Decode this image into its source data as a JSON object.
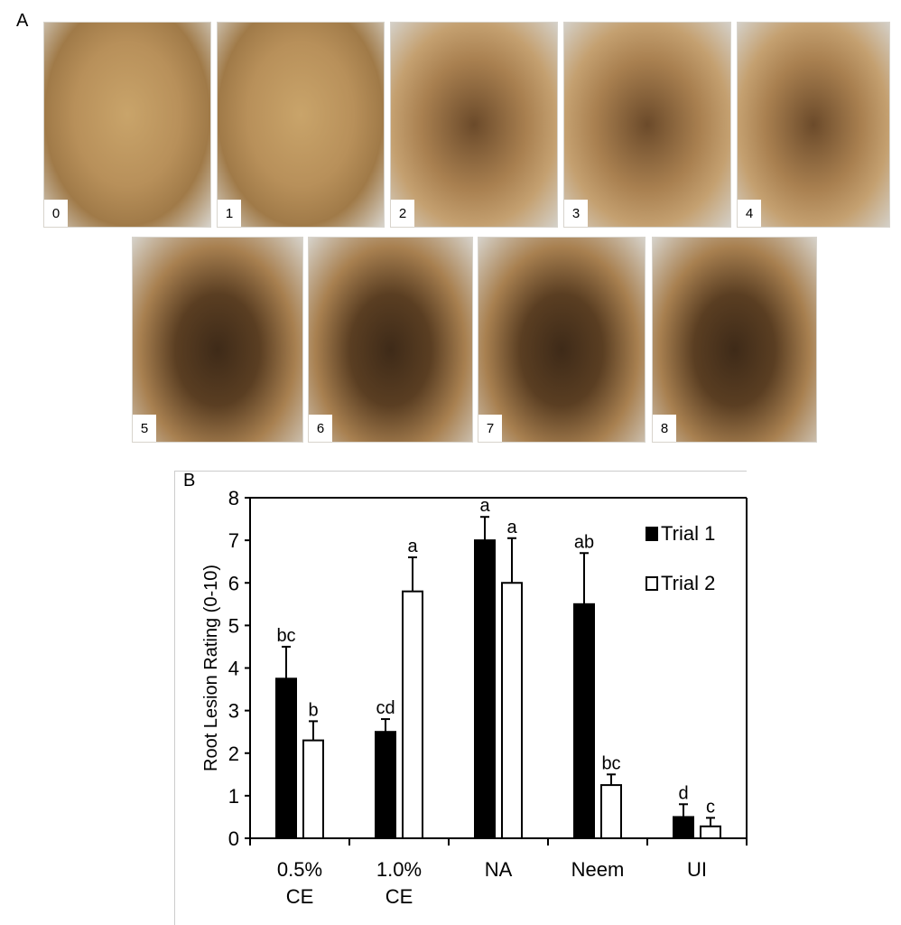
{
  "panel_a": {
    "label": "A",
    "photos": [
      {
        "num": "0",
        "tone": "light"
      },
      {
        "num": "1",
        "tone": "light"
      },
      {
        "num": "2",
        "tone": "mixed"
      },
      {
        "num": "3",
        "tone": "mixed"
      },
      {
        "num": "4",
        "tone": "mixed"
      },
      {
        "num": "5",
        "tone": "dark"
      },
      {
        "num": "6",
        "tone": "dark"
      },
      {
        "num": "7",
        "tone": "dark"
      },
      {
        "num": "8",
        "tone": "dark"
      }
    ]
  },
  "panel_b": {
    "label": "B"
  },
  "chart_data": {
    "type": "bar",
    "title": "",
    "xlabel": "",
    "ylabel": "Root Lesion Rating (0-10)",
    "ylim": [
      0,
      8
    ],
    "yticks": [
      0,
      1,
      2,
      3,
      4,
      5,
      6,
      7,
      8
    ],
    "categories": [
      "0.5% CE",
      "1.0% CE",
      "NA",
      "Neem",
      "UI"
    ],
    "category_lines": [
      [
        "0.5%",
        "CE"
      ],
      [
        "1.0%",
        "CE"
      ],
      [
        "NA"
      ],
      [
        "Neem"
      ],
      [
        "UI"
      ]
    ],
    "series": [
      {
        "name": "Trial 1",
        "fill": "#000000",
        "values": [
          3.75,
          2.5,
          7.0,
          5.5,
          0.5
        ],
        "errors": [
          0.75,
          0.3,
          0.55,
          1.2,
          0.3
        ],
        "letters": [
          "bc",
          "cd",
          "a",
          "ab",
          "d"
        ]
      },
      {
        "name": "Trial 2",
        "fill": "#ffffff",
        "values": [
          2.3,
          5.8,
          6.0,
          1.25,
          0.28
        ],
        "errors": [
          0.45,
          0.8,
          1.05,
          0.25,
          0.2
        ],
        "letters": [
          "b",
          "a",
          "a",
          "bc",
          "c"
        ]
      }
    ],
    "legend": {
      "position": "upper right",
      "entries": [
        "Trial 1",
        "Trial 2"
      ]
    },
    "grid": false
  }
}
